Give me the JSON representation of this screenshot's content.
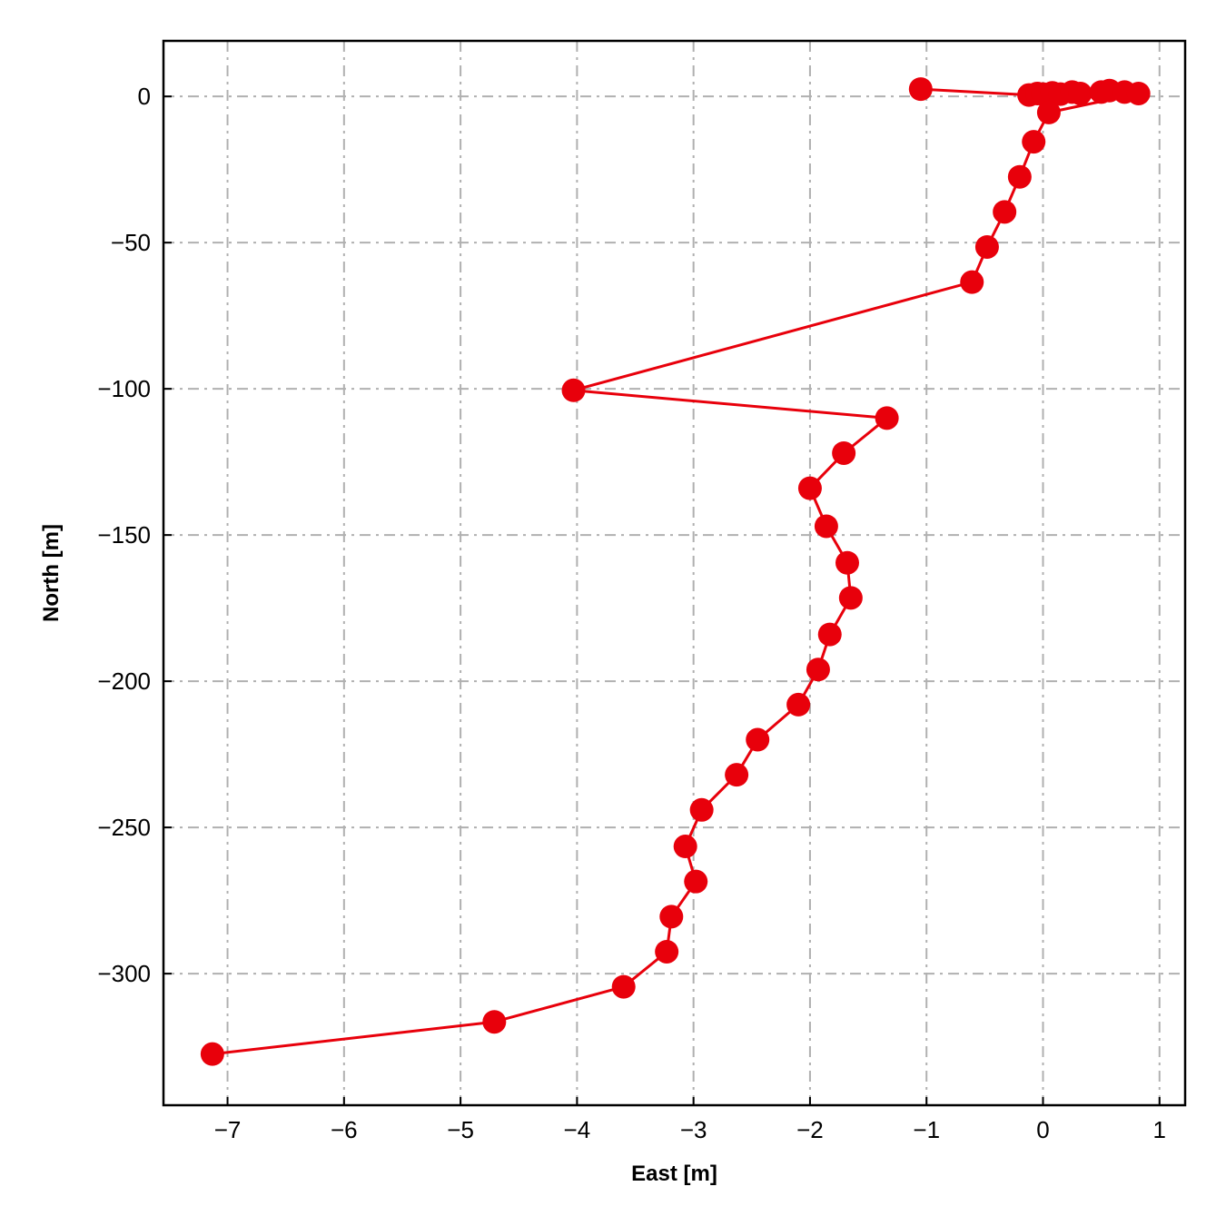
{
  "chart_data": {
    "type": "line",
    "title": "",
    "xlabel": "East [m]",
    "ylabel": "North [m]",
    "xlim": [
      -7.55,
      1.22
    ],
    "ylim": [
      -345,
      19
    ],
    "xticks": [
      -7,
      -6,
      -5,
      -4,
      -3,
      -2,
      -1,
      0,
      1
    ],
    "yticks": [
      0,
      -50,
      -100,
      -150,
      -200,
      -250,
      -300
    ],
    "grid": true,
    "series": [
      {
        "color": "#e8000b",
        "marker": "circle",
        "x": [
          -1.05,
          -0.12,
          -0.05,
          0.0,
          0.08,
          0.15,
          0.25,
          0.32,
          0.5,
          0.57,
          0.7,
          0.82,
          0.05,
          -0.08,
          -0.2,
          -0.33,
          -0.48,
          -0.61,
          -4.03,
          -1.34,
          -1.71,
          -2.0,
          -1.86,
          -1.68,
          -1.65,
          -1.83,
          -1.93,
          -2.1,
          -2.45,
          -2.63,
          -2.93,
          -3.07,
          -2.98,
          -3.19,
          -3.23,
          -3.6,
          -4.71,
          -7.13
        ],
        "y": [
          2.5,
          0.5,
          1.0,
          0.8,
          1.2,
          0.8,
          1.5,
          1.0,
          1.5,
          2.0,
          1.5,
          1.0,
          -5.5,
          -15.5,
          -27.5,
          -39.5,
          -51.5,
          -63.5,
          -100.5,
          -110,
          -122,
          -134,
          -147,
          -159.5,
          -171.5,
          -184,
          -196,
          -208,
          -220,
          -232,
          -244,
          -256.5,
          -268.5,
          -280.5,
          -292.5,
          -304.5,
          -316.5,
          -327.5
        ]
      }
    ]
  }
}
